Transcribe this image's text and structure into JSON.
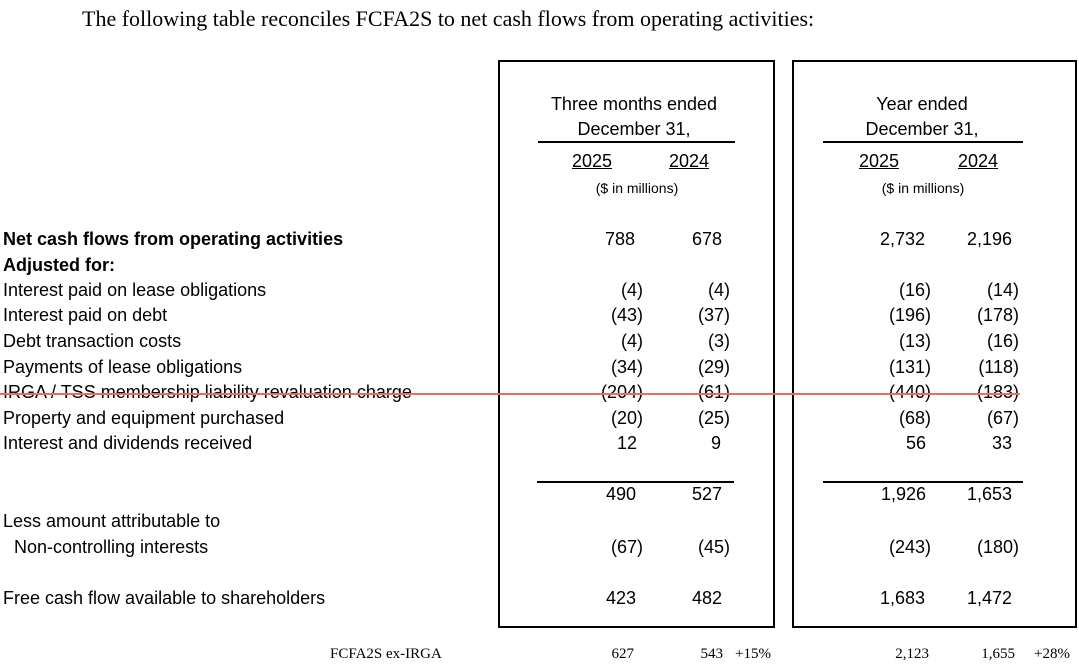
{
  "intro": "The following table reconciles FCFA2S to net cash flows from operating activities:",
  "columns": {
    "three_months": {
      "line1": "Three months ended",
      "line2": "December 31,",
      "years": [
        "2025",
        "2024"
      ],
      "unit": "($ in millions)"
    },
    "year": {
      "line1": "Year ended",
      "line2": "December 31,",
      "years": [
        "2025",
        "2024"
      ],
      "unit": "($ in millions)"
    }
  },
  "rows": [
    {
      "label": "Net cash flows from operating activities",
      "values": [
        "788",
        "678",
        "2,732",
        "2,196"
      ]
    },
    {
      "label": "Adjusted for:",
      "values": []
    },
    {
      "label": "Interest paid on lease obligations",
      "values": [
        "(4)",
        "(4)",
        "(16)",
        "(14)"
      ]
    },
    {
      "label": "Interest paid on debt",
      "values": [
        "(43)",
        "(37)",
        "(196)",
        "(178)"
      ]
    },
    {
      "label": "Debt transaction costs",
      "values": [
        "(4)",
        "(3)",
        "(13)",
        "(16)"
      ]
    },
    {
      "label": "Payments of lease obligations",
      "values": [
        "(34)",
        "(29)",
        "(131)",
        "(118)"
      ]
    },
    {
      "label": "IRGA / TSS membership liability revaluation charge",
      "values": [
        "(204)",
        "(61)",
        "(440)",
        "(183)"
      ]
    },
    {
      "label": "Property and equipment purchased",
      "values": [
        "(20)",
        "(25)",
        "(68)",
        "(67)"
      ]
    },
    {
      "label": "Interest and dividends received",
      "values": [
        "12",
        "9",
        "56",
        "33"
      ]
    }
  ],
  "subtotal": {
    "values": [
      "490",
      "527",
      "1,926",
      "1,653"
    ]
  },
  "less": {
    "line1": "Less amount attributable to",
    "line2": "Non-controlling interests",
    "values": [
      "(67)",
      "(45)",
      "(243)",
      "(180)"
    ]
  },
  "fcf": {
    "label": "Free cash flow available to shareholders",
    "values": [
      "423",
      "482",
      "1,683",
      "1,472"
    ]
  },
  "footer": {
    "label": "FCFA2S ex-IRGA",
    "values": [
      "627",
      "543",
      "2,123",
      "1,655"
    ],
    "changes": [
      "+15%",
      "+28%"
    ]
  },
  "colors": {
    "strike": "#e07060"
  }
}
